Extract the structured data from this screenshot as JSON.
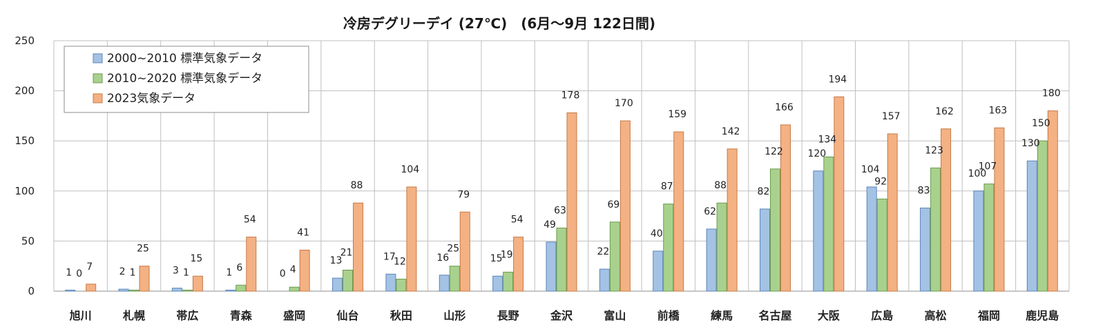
{
  "chart_data": {
    "type": "bar",
    "title": "冷房デグリーデイ (27℃)　(6月～9月 122日間)",
    "xlabel": "",
    "ylabel": "",
    "ylim": [
      0,
      250
    ],
    "yticks": [
      0,
      50,
      100,
      150,
      200,
      250
    ],
    "grid": true,
    "legend_position": "top-left",
    "categories": [
      "旭川",
      "札幌",
      "帯広",
      "青森",
      "盛岡",
      "仙台",
      "秋田",
      "山形",
      "長野",
      "金沢",
      "富山",
      "前橋",
      "練馬",
      "名古屋",
      "大阪",
      "広島",
      "高松",
      "福岡",
      "鹿児島"
    ],
    "series": [
      {
        "name": "2000~2010 標準気象データ",
        "color": "#a4c2e4",
        "stroke": "#5b86b8",
        "values": [
          1,
          2,
          3,
          1,
          0,
          13,
          17,
          16,
          15,
          49,
          22,
          40,
          62,
          82,
          120,
          104,
          83,
          100,
          130
        ],
        "labels": [
          "1",
          "2",
          "3",
          "1",
          "0",
          "13",
          "17",
          "16",
          "15",
          "49",
          "22",
          "40",
          "62",
          "82",
          "120",
          "104",
          "83",
          "100",
          "130"
        ]
      },
      {
        "name": "2010~2020 標準気象データ",
        "color": "#a9d18e",
        "stroke": "#6a9a4c",
        "values": [
          0,
          1,
          1,
          6,
          4,
          21,
          12,
          25,
          19,
          63,
          69,
          87,
          88,
          122,
          134,
          92,
          123,
          107,
          150
        ],
        "labels": [
          "0",
          "1",
          "1",
          "6",
          "4",
          "21",
          "12",
          "25",
          "19",
          "63",
          "69",
          "87",
          "88",
          "122",
          "134",
          "92",
          "123",
          "107",
          "150"
        ]
      },
      {
        "name": "2023気象データ",
        "color": "#f4b183",
        "stroke": "#c47a47",
        "values": [
          7,
          25,
          15,
          54,
          41,
          88,
          104,
          79,
          54,
          178,
          170,
          159,
          142,
          166,
          194,
          157,
          162,
          163,
          180
        ],
        "labels": [
          "7",
          "25",
          "15",
          "54",
          "41",
          "88",
          "104",
          "79",
          "54",
          "178",
          "170",
          "159",
          "142",
          "166",
          "194",
          "157",
          "162",
          "163",
          "180"
        ]
      }
    ]
  }
}
